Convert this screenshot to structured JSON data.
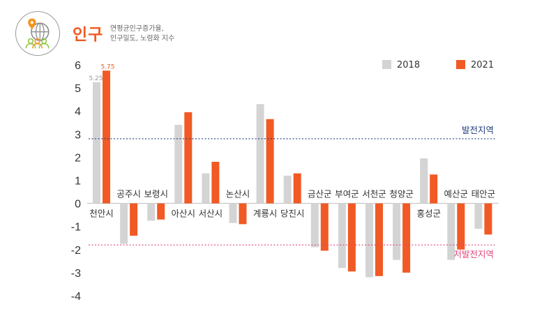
{
  "header": {
    "title": "인구",
    "subtitle_line1": "연평균인구증가율,",
    "subtitle_line2": "인구밀도, 노령화 지수",
    "icon": "globe-population-icon"
  },
  "colors": {
    "y2018": "#d4d4d4",
    "y2021": "#f15a24",
    "dev_line": "#1f3c7a",
    "under_line": "#e0457b"
  },
  "chart_data": {
    "type": "bar",
    "title": "",
    "xlabel": "",
    "ylabel": "",
    "ylim": [
      -4,
      6
    ],
    "yticks": [
      "6",
      "5",
      "4",
      "3",
      "2",
      "1",
      "0",
      "-1",
      "-2",
      "-3",
      "-4"
    ],
    "categories": [
      "천안시",
      "공주시",
      "보령시",
      "아산시",
      "서산시",
      "논산시",
      "계룡시",
      "당진시",
      "금산군",
      "부여군",
      "서천군",
      "청양군",
      "홍성군",
      "예산군",
      "태안군"
    ],
    "series": [
      {
        "name": "2018",
        "values": [
          5.25,
          -1.75,
          -0.75,
          3.4,
          1.3,
          -0.85,
          4.3,
          1.2,
          -1.9,
          -2.8,
          -3.2,
          -2.45,
          1.95,
          -2.45,
          -1.1
        ]
      },
      {
        "name": "2021",
        "values": [
          5.75,
          -1.4,
          -0.7,
          3.95,
          1.8,
          -0.9,
          3.65,
          1.3,
          -2.05,
          -2.95,
          -3.15,
          -3.0,
          1.25,
          -2.0,
          -1.35
        ]
      }
    ],
    "data_labels": [
      {
        "category": "천안시",
        "series": "2018",
        "text": "5.25"
      },
      {
        "category": "천안시",
        "series": "2021",
        "text": "5.75"
      }
    ],
    "reference_lines": [
      {
        "name": "발전지역",
        "value": 2.8
      },
      {
        "name": "저발전지역",
        "value": -1.8
      }
    ],
    "legend": [
      "2018",
      "2021"
    ],
    "legend_position": "top-right",
    "grid": false
  }
}
